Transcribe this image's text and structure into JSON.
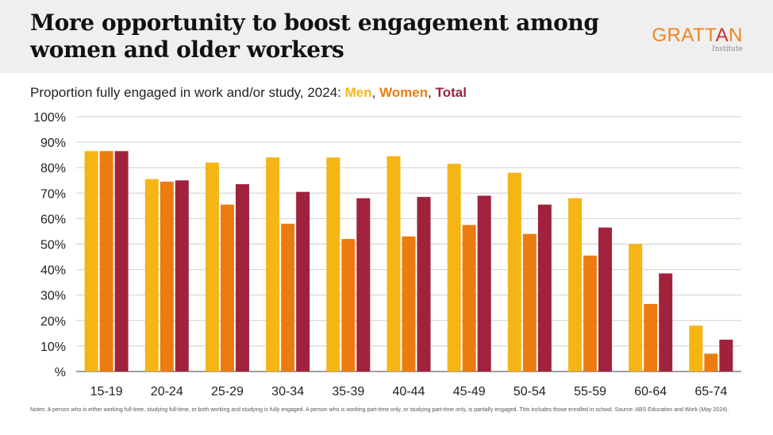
{
  "header": {
    "title": "More opportunity to boost engagement among women and older workers",
    "logo_word_1": "GRATT",
    "logo_word_2": "A",
    "logo_word_3": "N",
    "logo_sub": "Institute"
  },
  "subtitle": {
    "prefix": "Proportion fully engaged in work and/or study, 2024: ",
    "men": "Men",
    "comma1": ", ",
    "women": "Women",
    "comma2": ", ",
    "total": "Total"
  },
  "notes": "Notes: A person who is either working full-time, studying full-time, or both working and studying is fully engaged. A person who is working part-time only, or studying part-time only, is partially engaged. This includes those enrolled in school. Source: ABS Education and Work (May 2024).",
  "colors": {
    "men": "#f5b515",
    "women": "#ec7c0f",
    "total": "#a0223c",
    "logo_orange": "#f0841c",
    "logo_red": "#c43131"
  },
  "chart_data": {
    "type": "bar",
    "categories": [
      "15-19",
      "20-24",
      "25-29",
      "30-34",
      "35-39",
      "40-44",
      "45-49",
      "50-54",
      "55-59",
      "60-64",
      "65-74"
    ],
    "series": [
      {
        "name": "Men",
        "values": [
          86.5,
          75.5,
          82,
          84,
          84,
          84.5,
          81.5,
          78,
          68,
          50,
          18
        ]
      },
      {
        "name": "Women",
        "values": [
          86.5,
          74.5,
          65.5,
          58,
          52,
          53,
          57.5,
          54,
          45.5,
          26.5,
          7
        ]
      },
      {
        "name": "Total",
        "values": [
          86.5,
          75,
          73.5,
          70.5,
          68,
          68.5,
          69,
          65.5,
          56.5,
          38.5,
          12.5
        ]
      }
    ],
    "yticks": [
      0,
      10,
      20,
      30,
      40,
      50,
      60,
      70,
      80,
      90,
      100
    ],
    "ytick_labels": [
      "%",
      "10%",
      "20%",
      "30%",
      "40%",
      "50%",
      "60%",
      "70%",
      "80%",
      "90%",
      "100%"
    ],
    "ylim": [
      0,
      100
    ],
    "grid": true,
    "title": "",
    "xlabel": "",
    "ylabel": ""
  }
}
